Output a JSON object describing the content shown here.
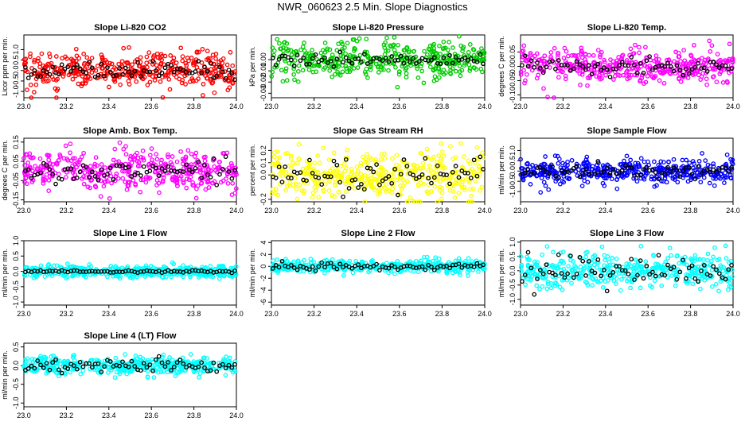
{
  "figure_title": "NWR_060623  2.5 Min. Slope Diagnostics",
  "chart_data": [
    {
      "type": "scatter",
      "title": "Slope Li-820 CO2",
      "ylabel": "Licor ppm per min.",
      "color": "#ff0000",
      "xlim": [
        23.0,
        24.0
      ],
      "ylim": [
        -1.3,
        1.7
      ],
      "x_ticks": [
        "23.0",
        "23.2",
        "23.4",
        "23.6",
        "23.8",
        "24.0"
      ],
      "y_ticks": [
        {
          "v": -1.0,
          "label": "-1.0"
        },
        {
          "v": -0.5,
          "label": "-0.5"
        },
        {
          "v": 0.0,
          "label": "0.0"
        },
        {
          "v": 0.5,
          "label": "0.5"
        },
        {
          "v": 1.0,
          "label": "1.0"
        }
      ],
      "spread": 0.42,
      "black_spread": 0.22,
      "n_points": 420,
      "n_black": 70
    },
    {
      "type": "scatter",
      "title": "Slope Li-820 Pressure",
      "ylabel": "kPa per min.",
      "color": "#00cc00",
      "xlim": [
        23.0,
        24.0
      ],
      "ylim": [
        -0.034,
        0.022
      ],
      "x_ticks": [
        "23.0",
        "23.2",
        "23.4",
        "23.6",
        "23.8",
        "24.0"
      ],
      "y_ticks": [
        {
          "v": -0.03,
          "label": "-0.03"
        },
        {
          "v": -0.02,
          "label": "-0.02"
        },
        {
          "v": -0.01,
          "label": "-0.01"
        },
        {
          "v": 0.0,
          "label": "0.00"
        }
      ],
      "spread": 0.008,
      "black_spread": 0.003,
      "n_points": 420,
      "n_black": 70
    },
    {
      "type": "scatter",
      "title": "Slope Li-820 Temp.",
      "ylabel": "degrees C per min.",
      "color": "#ff00ff",
      "xlim": [
        23.0,
        24.0
      ],
      "ylim": [
        -0.11,
        0.11
      ],
      "x_ticks": [
        "23.0",
        "23.2",
        "23.4",
        "23.6",
        "23.8",
        "24.0"
      ],
      "y_ticks": [
        {
          "v": -0.1,
          "label": "-0.10"
        },
        {
          "v": -0.05,
          "label": "-0.05"
        },
        {
          "v": 0.0,
          "label": "0.00"
        },
        {
          "v": 0.05,
          "label": "0.05"
        }
      ],
      "spread": 0.03,
      "black_spread": 0.015,
      "n_points": 420,
      "n_black": 70
    },
    {
      "type": "scatter",
      "title": "Slope Amb. Box Temp.",
      "ylabel": "degrees C per min.",
      "color": "#ff00ff",
      "xlim": [
        23.0,
        24.0
      ],
      "ylim": [
        -0.16,
        0.17
      ],
      "x_ticks": [
        "23.0",
        "23.2",
        "23.4",
        "23.6",
        "23.8",
        "24.0"
      ],
      "y_ticks": [
        {
          "v": -0.15,
          "label": "-0.15"
        },
        {
          "v": -0.05,
          "label": "-0.05"
        },
        {
          "v": 0.05,
          "label": "0.05"
        },
        {
          "v": 0.15,
          "label": "0.15"
        }
      ],
      "spread": 0.05,
      "black_spread": 0.03,
      "n_points": 420,
      "n_black": 70
    },
    {
      "type": "scatter",
      "title": "Slope Gas Stream RH",
      "ylabel": "percent per min.",
      "color": "#ffff00",
      "xlim": [
        23.0,
        24.0
      ],
      "ylim": [
        -0.22,
        0.3
      ],
      "x_ticks": [
        "23.0",
        "23.2",
        "23.4",
        "23.6",
        "23.8",
        "24.0"
      ],
      "y_ticks": [
        {
          "v": -0.2,
          "label": "-0.2"
        },
        {
          "v": 0.0,
          "label": "0.0"
        },
        {
          "v": 0.1,
          "label": "0.1"
        },
        {
          "v": 0.2,
          "label": "0.2"
        }
      ],
      "spread": 0.1,
      "black_spread": 0.08,
      "n_points": 420,
      "n_black": 70
    },
    {
      "type": "scatter",
      "title": "Slope Sample Flow",
      "ylabel": "ml/min per min.",
      "color": "#0000ff",
      "xlim": [
        23.0,
        24.0
      ],
      "ylim": [
        -1.5,
        1.6
      ],
      "x_ticks": [
        "23.0",
        "23.2",
        "23.4",
        "23.6",
        "23.8",
        "24.0"
      ],
      "y_ticks": [
        {
          "v": -1.0,
          "label": "-1.0"
        },
        {
          "v": -0.5,
          "label": "-0.5"
        },
        {
          "v": 0.0,
          "label": "0.0"
        },
        {
          "v": 0.5,
          "label": "0.5"
        },
        {
          "v": 1.0,
          "label": "1.0"
        }
      ],
      "spread": 0.3,
      "black_spread": 0.2,
      "n_points": 420,
      "n_black": 70
    },
    {
      "type": "scatter",
      "title": "Slope Line 1 Flow",
      "ylabel": "ml/min per min.",
      "color": "#00ffff",
      "xlim": [
        23.0,
        24.0
      ],
      "ylim": [
        -1.1,
        1.0
      ],
      "x_ticks": [
        "23.0",
        "23.2",
        "23.4",
        "23.6",
        "23.8",
        "24.0"
      ],
      "y_ticks": [
        {
          "v": -1.0,
          "label": "-1.0"
        },
        {
          "v": -0.5,
          "label": "-0.5"
        },
        {
          "v": 0.0,
          "label": "0.0"
        },
        {
          "v": 0.5,
          "label": "0.5"
        },
        {
          "v": 1.0,
          "label": "1.0"
        }
      ],
      "spread": 0.1,
      "black_spread": 0.02,
      "n_points": 420,
      "n_black": 70
    },
    {
      "type": "scatter",
      "title": "Slope Line 2 Flow",
      "ylabel": "ml/min per min.",
      "color": "#00ffff",
      "xlim": [
        23.0,
        24.0
      ],
      "ylim": [
        -6.5,
        4.3
      ],
      "x_ticks": [
        "23.0",
        "23.2",
        "23.4",
        "23.6",
        "23.8",
        "24.0"
      ],
      "y_ticks": [
        {
          "v": -6,
          "label": "-6"
        },
        {
          "v": -4,
          "label": "-4"
        },
        {
          "v": -2,
          "label": "-2"
        },
        {
          "v": 0,
          "label": "0"
        },
        {
          "v": 2,
          "label": "2"
        },
        {
          "v": 4,
          "label": "4"
        }
      ],
      "spread": 0.5,
      "black_spread": 0.3,
      "n_points": 420,
      "n_black": 70
    },
    {
      "type": "scatter",
      "title": "Slope Line 3 Flow",
      "ylabel": "ml/min per min.",
      "color": "#00ffff",
      "xlim": [
        23.0,
        24.0
      ],
      "ylim": [
        -1.2,
        1.05
      ],
      "x_ticks": [
        "23.0",
        "23.2",
        "23.4",
        "23.6",
        "23.8",
        "24.0"
      ],
      "y_ticks": [
        {
          "v": -1.0,
          "label": "-1.0"
        },
        {
          "v": -0.5,
          "label": "-0.5"
        },
        {
          "v": 0.0,
          "label": "0.0"
        },
        {
          "v": 0.5,
          "label": "0.5"
        },
        {
          "v": 1.0,
          "label": "1.0"
        }
      ],
      "spread": 0.3,
      "black_spread": 0.3,
      "n_points": 420,
      "n_black": 70
    },
    {
      "type": "scatter",
      "title": "Slope Line 4 (LT) Flow",
      "ylabel": "ml/min per min.",
      "color": "#00ffff",
      "xlim": [
        23.0,
        24.0
      ],
      "ylim": [
        -1.1,
        0.6
      ],
      "x_ticks": [
        "23.0",
        "23.2",
        "23.4",
        "23.6",
        "23.8",
        "24.0"
      ],
      "y_ticks": [
        {
          "v": -1.0,
          "label": "-1.0"
        },
        {
          "v": -0.5,
          "label": "-0.5"
        },
        {
          "v": 0.0,
          "label": "0.0"
        },
        {
          "v": 0.5,
          "label": "0.5"
        }
      ],
      "spread": 0.12,
      "black_spread": 0.1,
      "n_points": 420,
      "n_black": 70
    }
  ]
}
